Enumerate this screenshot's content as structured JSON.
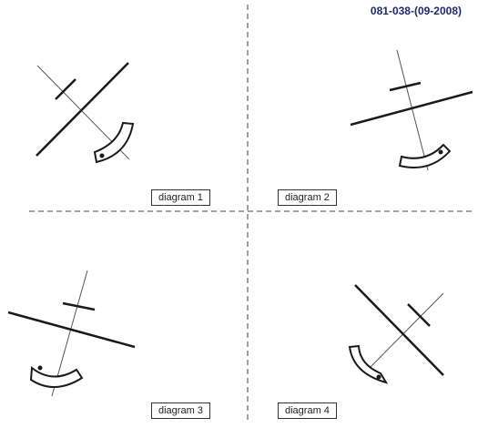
{
  "reference_code": "081-038-(09-2008)",
  "diagrams": [
    {
      "label": "diagram 1"
    },
    {
      "label": "diagram 2"
    },
    {
      "label": "diagram 3"
    },
    {
      "label": "diagram 4"
    }
  ],
  "colors": {
    "line": "#1a1a1a",
    "thin_line": "#555555",
    "dash": "#444444",
    "reference_text": "#1f2a6b"
  }
}
